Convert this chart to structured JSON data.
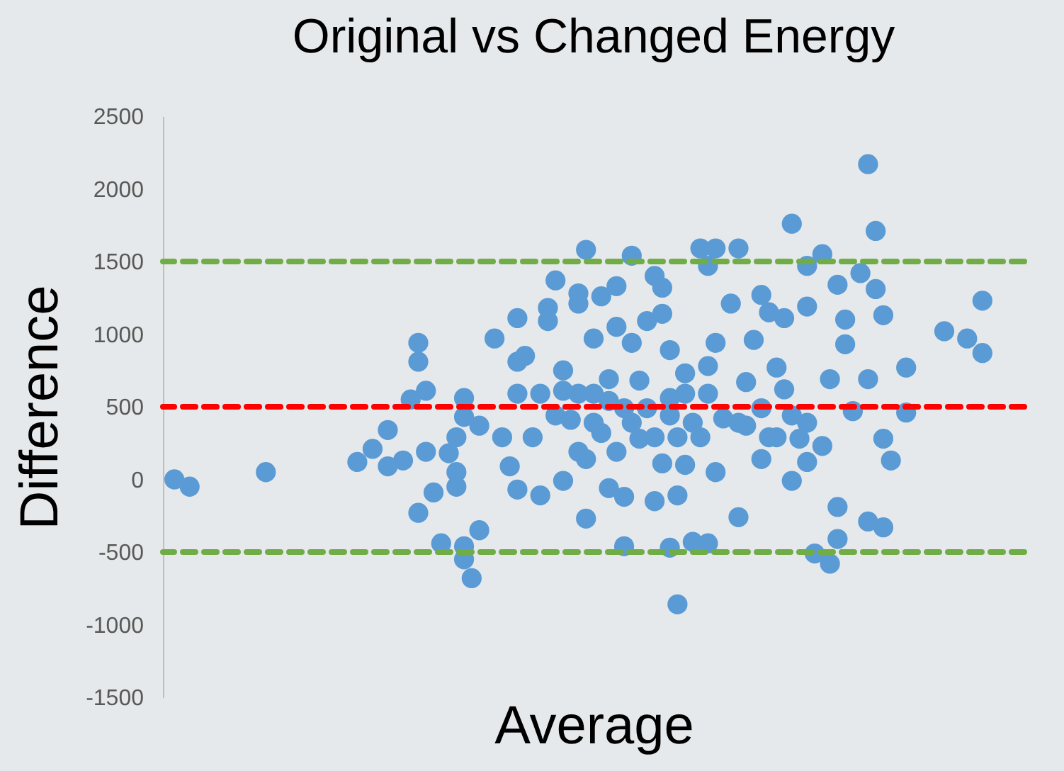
{
  "chart_data": {
    "type": "scatter",
    "title": "Original vs Changed Energy",
    "xlabel": "Average",
    "ylabel": "Difference",
    "categories": [
      null,
      null,
      null,
      null,
      null,
      null,
      null,
      null,
      null,
      null,
      null,
      null,
      null,
      null,
      null,
      null,
      null,
      null,
      null,
      null,
      null,
      null,
      null,
      null,
      null,
      null,
      null,
      null,
      null,
      null,
      null,
      null,
      null,
      null,
      null,
      null,
      null,
      null,
      null,
      null,
      null,
      null,
      null,
      null,
      null,
      null,
      null,
      null,
      null,
      null,
      null,
      null,
      null,
      null,
      null,
      null,
      null,
      null,
      null,
      null,
      null,
      null,
      null,
      null,
      null,
      null,
      null,
      null,
      null,
      null,
      null,
      null,
      null,
      null,
      null,
      null,
      null,
      null,
      null,
      null,
      null,
      null,
      null,
      null,
      null,
      null,
      null,
      null,
      null,
      null,
      null,
      null,
      null,
      null,
      null,
      null,
      null,
      null,
      null,
      null,
      null,
      null,
      null,
      null,
      null,
      null,
      null,
      null,
      null,
      null,
      null,
      null,
      null
    ],
    "series": [
      {
        "color": "#5b9bd5",
        "values": [
          null,
          0,
          null,
          -50,
          null,
          null,
          null,
          null,
          null,
          null,
          null,
          null,
          null,
          50,
          null,
          null,
          null,
          null,
          null,
          null,
          null,
          null,
          null,
          null,
          null,
          120,
          null,
          210,
          null,
          340,
          null,
          130,
          550,
          940,
          610,
          -90,
          -440,
          180,
          50,
          560,
          -680,
          -350,
          null,
          970,
          290,
          90,
          -70,
          850,
          290,
          -110,
          1090,
          1370,
          610,
          410,
          1210,
          -270,
          970,
          1260,
          -60,
          1050,
          -460,
          940,
          280,
          1090,
          -150,
          110,
          -470,
          -860,
          730,
          -430,
          1590,
          1470,
          1590,
          420,
          1210,
          1590,
          670,
          960,
          1270,
          1150,
          770,
          620,
          1760,
          280,
          120,
          -510,
          1550,
          -580,
          1340,
          930,
          470,
          1420,
          2170,
          1310,
          1130,
          130,
          null,
          770,
          null,
          null,
          null,
          null,
          1020,
          null,
          null,
          970,
          null,
          870,
          null,
          null,
          null,
          null,
          null
        ]
      },
      {
        "color": "#5b9bd5",
        "values": [
          null,
          null,
          null,
          null,
          null,
          null,
          null,
          null,
          null,
          null,
          null,
          null,
          null,
          null,
          null,
          null,
          null,
          null,
          null,
          null,
          null,
          null,
          null,
          null,
          null,
          null,
          null,
          null,
          null,
          90,
          null,
          null,
          null,
          810,
          190,
          null,
          null,
          null,
          -50,
          430,
          null,
          370,
          null,
          null,
          null,
          null,
          1110,
          null,
          null,
          590,
          1180,
          440,
          -10,
          null,
          1280,
          140,
          590,
          320,
          690,
          1330,
          490,
          1540,
          680,
          490,
          1400,
          1140,
          560,
          -110,
          100,
          390,
          290,
          -440,
          940,
          null,
          null,
          -260,
          370,
          null,
          140,
          290,
          290,
          1110,
          -10,
          null,
          1190,
          null,
          230,
          690,
          -410,
          1100,
          null,
          null,
          690,
          1710,
          280,
          null,
          null,
          460,
          null,
          null,
          null,
          null,
          null,
          null,
          null,
          null,
          null,
          1230,
          null,
          null,
          null,
          null,
          null
        ]
      },
      {
        "color": "#5b9bd5",
        "values": [
          null,
          null,
          null,
          null,
          null,
          null,
          null,
          null,
          null,
          null,
          null,
          null,
          null,
          null,
          null,
          null,
          null,
          null,
          null,
          null,
          null,
          null,
          null,
          null,
          null,
          null,
          null,
          null,
          null,
          null,
          null,
          null,
          null,
          -230,
          null,
          null,
          null,
          null,
          290,
          -550,
          null,
          null,
          null,
          null,
          null,
          null,
          810,
          null,
          null,
          null,
          null,
          null,
          750,
          null,
          590,
          1580,
          390,
          null,
          540,
          190,
          -120,
          390,
          null,
          null,
          290,
          1320,
          890,
          290,
          590,
          null,
          null,
          780,
          50,
          null,
          null,
          390,
          null,
          null,
          490,
          null,
          null,
          null,
          440,
          null,
          1470,
          null,
          null,
          null,
          -190,
          null,
          null,
          null,
          -290,
          null,
          -330,
          null,
          null,
          null,
          null,
          null,
          null,
          null,
          null,
          null,
          null,
          null,
          null,
          null,
          null,
          null,
          null,
          null,
          null
        ]
      },
      {
        "color": "#5b9bd5",
        "values": [
          null,
          null,
          null,
          null,
          null,
          null,
          null,
          null,
          null,
          null,
          null,
          null,
          null,
          null,
          null,
          null,
          null,
          null,
          null,
          null,
          null,
          null,
          null,
          null,
          null,
          null,
          null,
          null,
          null,
          null,
          null,
          null,
          null,
          null,
          null,
          null,
          null,
          null,
          null,
          -460,
          null,
          null,
          null,
          null,
          null,
          null,
          590,
          null,
          null,
          null,
          null,
          null,
          null,
          null,
          190,
          null,
          null,
          null,
          null,
          null,
          null,
          null,
          null,
          null,
          null,
          null,
          440,
          null,
          null,
          null,
          null,
          590,
          null,
          null,
          null,
          null,
          null,
          null,
          null,
          null,
          null,
          null,
          null,
          null,
          390,
          null,
          null,
          null,
          null,
          null,
          null,
          null,
          null,
          null,
          null,
          null,
          null,
          null,
          null,
          null,
          null,
          null,
          null,
          null,
          null,
          null,
          null,
          null,
          null,
          null,
          null,
          null,
          null
        ]
      }
    ],
    "marker": "circle",
    "ylim": [
      -1500,
      2500
    ],
    "yticks": [
      -1500,
      -1000,
      -500,
      0,
      500,
      1000,
      1500,
      2000,
      2500
    ],
    "tick_labels": "y",
    "ref_lines": [
      {
        "axis": "y",
        "value": 1500,
        "color": "#70ad47",
        "line_style": "dashed"
      },
      {
        "axis": "y",
        "value": 500,
        "color": "#ff0000",
        "line_style": "dashed"
      },
      {
        "axis": "y",
        "value": -500,
        "color": "#70ad47",
        "line_style": "dashed"
      }
    ]
  }
}
